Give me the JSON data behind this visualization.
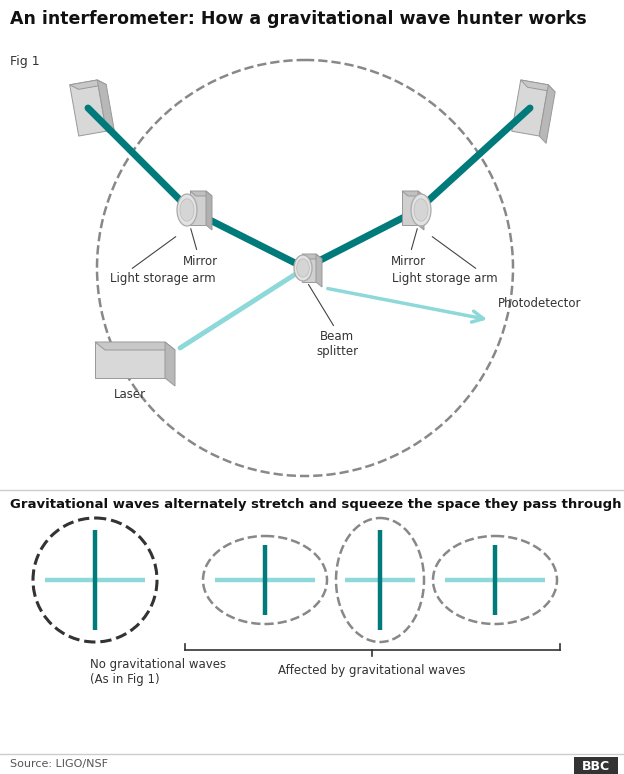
{
  "title": "An interferometer: How a gravitational wave hunter works",
  "fig1_label": "Fig 1",
  "teal_dark": "#007a7a",
  "teal_light": "#8dd8d8",
  "gray_light": "#cccccc",
  "gray_medium": "#aaaaaa",
  "gray_dark": "#555555",
  "dashed_circle_color": "#888888",
  "dashed_circle_dark": "#444444",
  "background": "#ffffff",
  "section2_title": "Gravitational waves alternately stretch and squeeze the space they pass through",
  "label_no_grav": "No gravitational waves\n(As in Fig 1)",
  "label_affected": "Affected by gravitational waves",
  "source_text": "Source: LIGO/NSF",
  "bbc_text": "BBC",
  "fig_width": 6.24,
  "fig_height": 7.74,
  "dpi": 100
}
